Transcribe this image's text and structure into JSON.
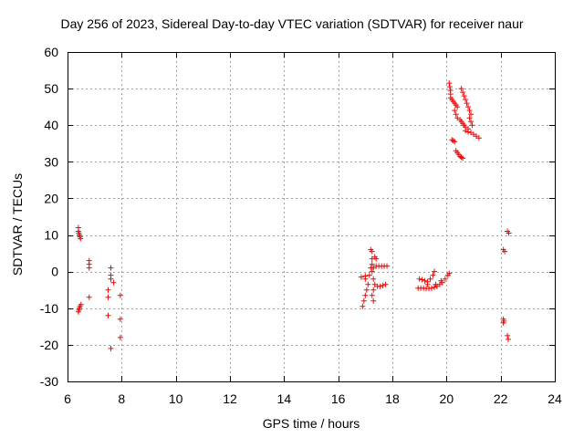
{
  "chart_data": {
    "type": "scatter",
    "title": "Day 256 of 2023, Sidereal Day-to-day VTEC variation (SDTVAR) for receiver naur",
    "xlabel": "GPS time / hours",
    "ylabel": "SDTVAR / TECUs",
    "xlim": [
      6,
      24
    ],
    "ylim": [
      -30,
      60
    ],
    "xticks": [
      6,
      8,
      10,
      12,
      14,
      16,
      18,
      20,
      22,
      24
    ],
    "yticks": [
      -30,
      -20,
      -10,
      0,
      10,
      20,
      30,
      40,
      50,
      60
    ],
    "grid": true,
    "marker": "+",
    "color": "#ff0000",
    "series": [
      {
        "name": "SDTVAR",
        "points": [
          [
            6.4,
            12
          ],
          [
            6.4,
            11
          ],
          [
            6.42,
            10.5
          ],
          [
            6.44,
            10
          ],
          [
            6.46,
            9.5
          ],
          [
            6.48,
            9
          ],
          [
            6.4,
            -11
          ],
          [
            6.42,
            -10.5
          ],
          [
            6.44,
            -10
          ],
          [
            6.46,
            -9.5
          ],
          [
            6.5,
            -9
          ],
          [
            6.8,
            3
          ],
          [
            6.8,
            2
          ],
          [
            6.8,
            1
          ],
          [
            6.8,
            -7
          ],
          [
            7.5,
            -5
          ],
          [
            7.5,
            -7
          ],
          [
            7.5,
            -12
          ],
          [
            7.6,
            1
          ],
          [
            7.6,
            -1
          ],
          [
            7.6,
            -2
          ],
          [
            7.6,
            -21
          ],
          [
            7.7,
            -3
          ],
          [
            7.95,
            -6.5
          ],
          [
            7.95,
            -13
          ],
          [
            7.95,
            -18
          ],
          [
            16.9,
            -9.5
          ],
          [
            16.95,
            -8
          ],
          [
            17.0,
            -6.5
          ],
          [
            17.05,
            -5
          ],
          [
            17.1,
            -3.5
          ],
          [
            17.0,
            -2
          ],
          [
            16.85,
            -1.5
          ],
          [
            17.0,
            -1.2
          ],
          [
            17.15,
            -1
          ],
          [
            17.2,
            1
          ],
          [
            17.25,
            0
          ],
          [
            17.25,
            2
          ],
          [
            17.25,
            3.5
          ],
          [
            17.2,
            6
          ],
          [
            17.25,
            5.5
          ],
          [
            17.35,
            4
          ],
          [
            17.4,
            3.5
          ],
          [
            17.3,
            1
          ],
          [
            17.4,
            1.5
          ],
          [
            17.5,
            1.5
          ],
          [
            17.6,
            1.5
          ],
          [
            17.7,
            1.5
          ],
          [
            17.8,
            1.5
          ],
          [
            17.3,
            -2
          ],
          [
            17.35,
            -3.5
          ],
          [
            17.45,
            -4
          ],
          [
            17.55,
            -4
          ],
          [
            17.65,
            -3.8
          ],
          [
            17.75,
            -3.5
          ],
          [
            17.3,
            -5
          ],
          [
            17.25,
            -6.5
          ],
          [
            17.3,
            -8
          ],
          [
            18.95,
            -4.5
          ],
          [
            19.05,
            -4.5
          ],
          [
            19.15,
            -4.5
          ],
          [
            19.25,
            -4.6
          ],
          [
            19.35,
            -4.6
          ],
          [
            19.45,
            -4.5
          ],
          [
            19.55,
            -4.3
          ],
          [
            19.65,
            -4
          ],
          [
            19.75,
            -3.5
          ],
          [
            19.85,
            -3
          ],
          [
            19.95,
            -2
          ],
          [
            20.05,
            -1
          ],
          [
            20.1,
            -0.5
          ],
          [
            19.0,
            -2
          ],
          [
            19.1,
            -2.2
          ],
          [
            19.2,
            -2.5
          ],
          [
            19.3,
            -2.8
          ],
          [
            19.4,
            -2
          ],
          [
            19.5,
            -1
          ],
          [
            19.55,
            0
          ],
          [
            19.3,
            -3.5
          ],
          [
            19.6,
            -3.5
          ],
          [
            19.8,
            -2.5
          ],
          [
            20.1,
            51.5
          ],
          [
            20.12,
            50.5
          ],
          [
            20.14,
            49.5
          ],
          [
            20.15,
            48.5
          ],
          [
            20.15,
            47.5
          ],
          [
            20.2,
            47
          ],
          [
            20.25,
            46.5
          ],
          [
            20.3,
            46
          ],
          [
            20.35,
            45.5
          ],
          [
            20.4,
            45
          ],
          [
            20.3,
            44
          ],
          [
            20.35,
            43
          ],
          [
            20.4,
            42
          ],
          [
            20.5,
            41.5
          ],
          [
            20.55,
            41
          ],
          [
            20.6,
            40.5
          ],
          [
            20.65,
            40
          ],
          [
            20.7,
            39.5
          ],
          [
            20.55,
            50
          ],
          [
            20.6,
            49
          ],
          [
            20.65,
            48
          ],
          [
            20.7,
            47
          ],
          [
            20.75,
            46
          ],
          [
            20.8,
            45
          ],
          [
            20.85,
            44
          ],
          [
            20.9,
            43
          ],
          [
            20.85,
            42
          ],
          [
            20.9,
            41
          ],
          [
            20.95,
            40
          ],
          [
            20.8,
            39
          ],
          [
            20.7,
            38.5
          ],
          [
            20.8,
            38.2
          ],
          [
            20.9,
            38
          ],
          [
            21.0,
            37.5
          ],
          [
            21.1,
            37
          ],
          [
            21.2,
            36.5
          ],
          [
            20.2,
            36
          ],
          [
            20.25,
            35.8
          ],
          [
            20.3,
            35.5
          ],
          [
            20.35,
            33
          ],
          [
            20.4,
            32.5
          ],
          [
            20.45,
            32
          ],
          [
            20.5,
            31.5
          ],
          [
            20.55,
            31.2
          ],
          [
            20.6,
            31
          ],
          [
            22.1,
            6
          ],
          [
            22.15,
            5.5
          ],
          [
            22.25,
            11
          ],
          [
            22.3,
            10.5
          ],
          [
            22.1,
            -13
          ],
          [
            22.12,
            -13.5
          ],
          [
            22.1,
            -14
          ],
          [
            22.25,
            -17.5
          ],
          [
            22.28,
            -18.5
          ]
        ]
      }
    ]
  }
}
